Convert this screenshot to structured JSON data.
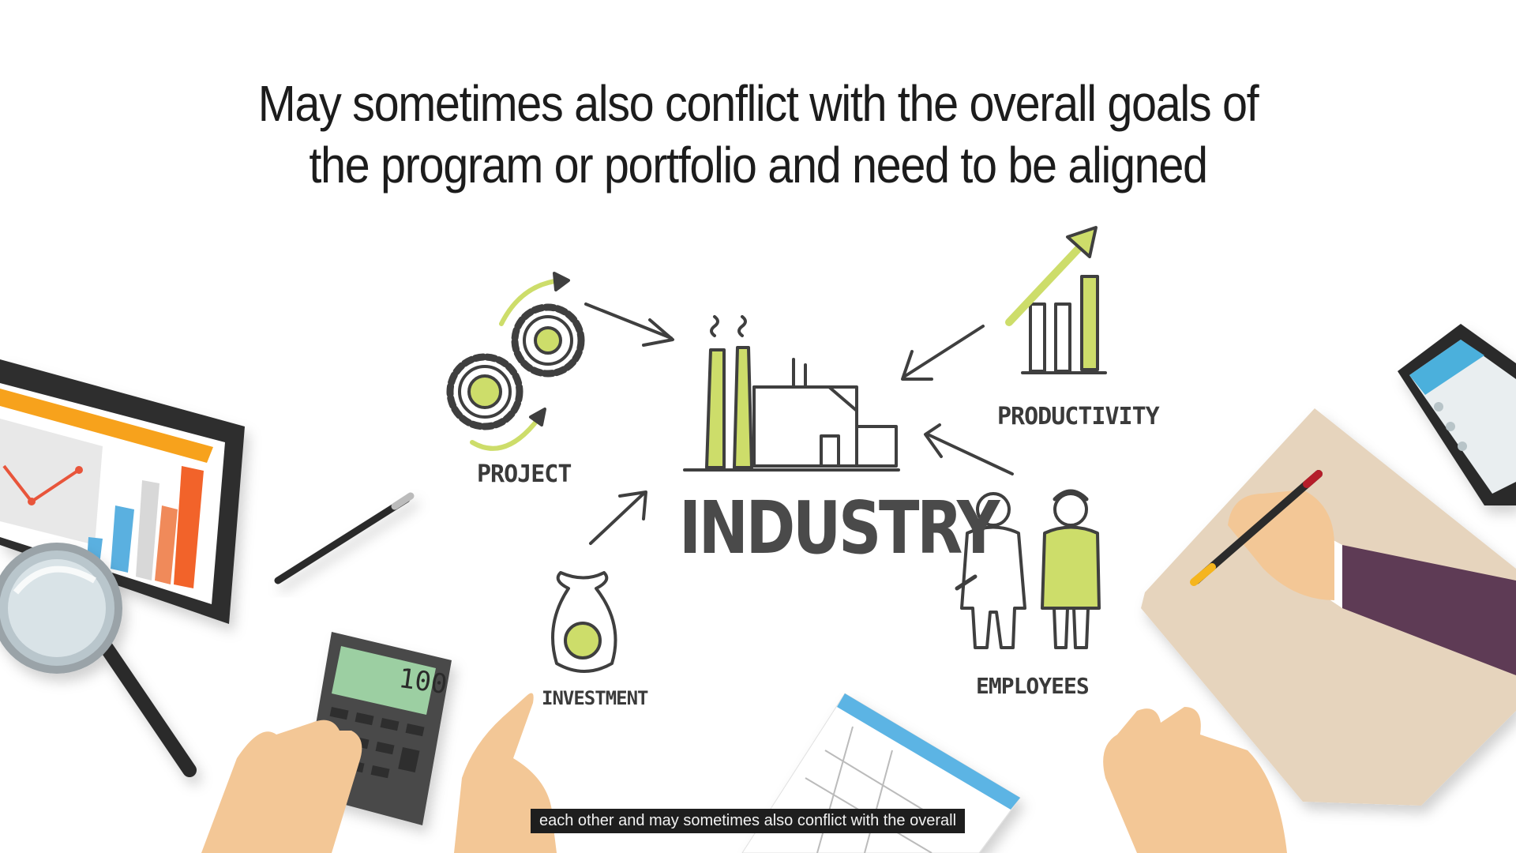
{
  "slide": {
    "heading_line1": "May sometimes also conflict with the overall goals of",
    "heading_line2": "the program or portfolio and need to be aligned"
  },
  "diagram": {
    "center_label": "INDUSTRY",
    "nodes": {
      "project": "PROJECT",
      "productivity": "PRODUCTIVITY",
      "investment": "INVESTMENT",
      "employees": "EMPLOYEES"
    }
  },
  "calculator": {
    "display": "100"
  },
  "subtitle": {
    "text": "each other and may sometimes also conflict with the overall"
  },
  "colors": {
    "accent_green": "#cddd6a",
    "sketch_stroke": "#3f3f3f",
    "skin": "#f3c796",
    "caption_bg": "#1e1e1e"
  },
  "icons": [
    "gears-icon",
    "factory-icon",
    "growth-chart-icon",
    "money-bag-icon",
    "workers-icon",
    "arrow-icon",
    "tablet-chart-icon",
    "magnifier-icon",
    "pen-icon",
    "calculator-icon",
    "phone-icon",
    "clipboard-icon",
    "document-icon"
  ]
}
